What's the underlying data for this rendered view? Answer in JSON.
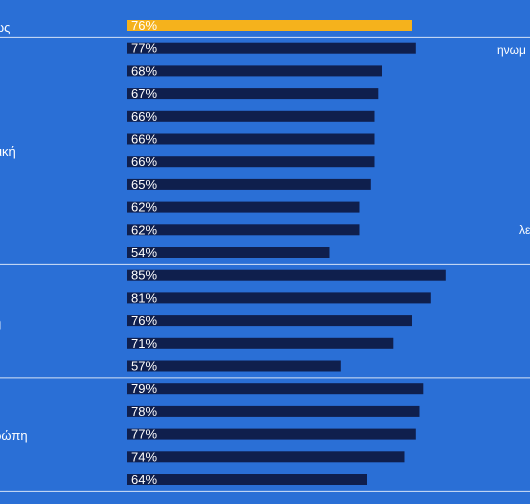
{
  "colors": {
    "background": "#2a6fd6",
    "bar": "#0f1f4d",
    "highlight_bar": "#f5b21c",
    "separator": "#d6e3f7",
    "text": "#ffffff"
  },
  "side_labels": {
    "top": "ηνωμ",
    "middle": "λε"
  },
  "chart_data": {
    "type": "bar",
    "orientation": "horizontal",
    "xlim": [
      0,
      100
    ],
    "grid": false,
    "legend": "none",
    "groups": [
      {
        "label": "ως",
        "bars": [
          {
            "value": 76,
            "label": "76%",
            "highlight": true
          }
        ]
      },
      {
        "label": "τική",
        "bars": [
          {
            "value": 77,
            "label": "77%"
          },
          {
            "value": 68,
            "label": "68%"
          },
          {
            "value": 67,
            "label": "67%"
          },
          {
            "value": 66,
            "label": "66%"
          },
          {
            "value": 66,
            "label": "66%"
          },
          {
            "value": 66,
            "label": "66%"
          },
          {
            "value": 65,
            "label": "65%"
          },
          {
            "value": 62,
            "label": "62%"
          },
          {
            "value": 62,
            "label": "62%"
          },
          {
            "value": 54,
            "label": "54%"
          }
        ]
      },
      {
        "label": "ή",
        "bars": [
          {
            "value": 85,
            "label": "85%"
          },
          {
            "value": 81,
            "label": "81%"
          },
          {
            "value": 76,
            "label": "76%"
          },
          {
            "value": 71,
            "label": "71%"
          },
          {
            "value": 57,
            "label": "57%"
          }
        ]
      },
      {
        "label": "ρώπη",
        "bars": [
          {
            "value": 79,
            "label": "79%"
          },
          {
            "value": 78,
            "label": "78%"
          },
          {
            "value": 77,
            "label": "77%"
          },
          {
            "value": 74,
            "label": "74%"
          },
          {
            "value": 64,
            "label": "64%"
          }
        ]
      }
    ]
  }
}
